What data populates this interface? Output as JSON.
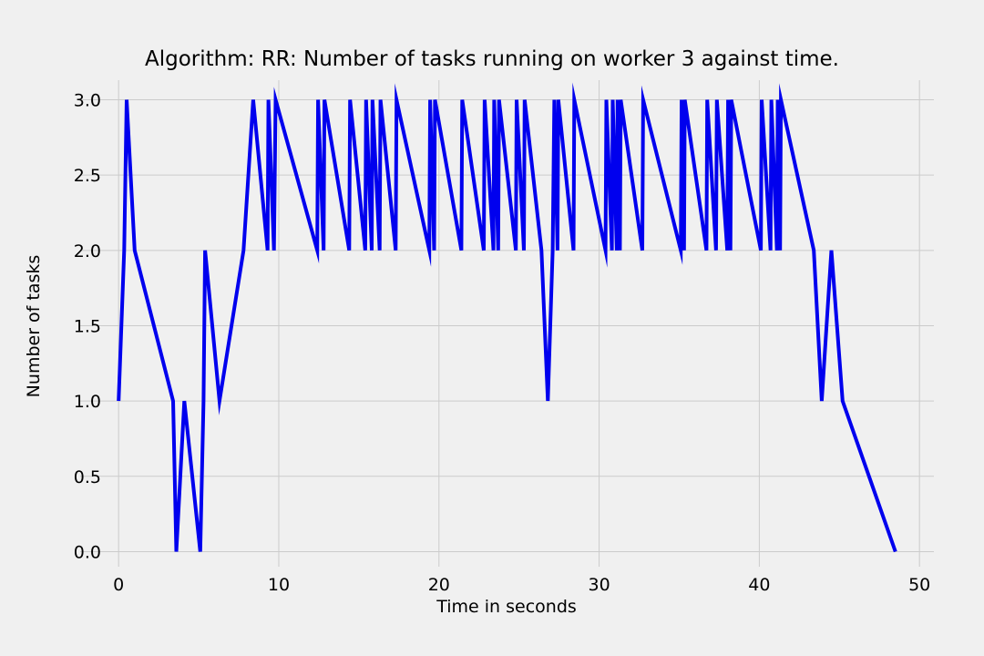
{
  "chart_data": {
    "type": "line",
    "title": "Algorithm: RR: Number of tasks running on worker 3 against time.",
    "xlabel": "Time in seconds",
    "ylabel": "Number of tasks",
    "xlim": [
      -2.4,
      50.9
    ],
    "ylim": [
      -0.1,
      3.13
    ],
    "xticks": [
      0,
      10,
      20,
      30,
      40,
      50
    ],
    "yticks": [
      0.0,
      0.5,
      1.0,
      1.5,
      2.0,
      2.5,
      3.0
    ],
    "ytick_labels": [
      "0.0",
      "0.5",
      "1.0",
      "1.5",
      "2.0",
      "2.5",
      "3.0"
    ],
    "grid": true,
    "series": [
      {
        "color": "#0000ee",
        "x": [
          0.0,
          0.35,
          0.5,
          1.0,
          3.4,
          3.6,
          4.1,
          5.1,
          5.3,
          5.4,
          6.3,
          7.8,
          8.4,
          9.3,
          9.35,
          9.7,
          9.8,
          12.4,
          12.45,
          12.8,
          12.85,
          14.4,
          14.45,
          15.4,
          15.45,
          15.8,
          15.85,
          16.3,
          16.35,
          17.3,
          17.35,
          19.4,
          19.45,
          19.7,
          19.75,
          21.4,
          21.45,
          22.8,
          22.85,
          23.4,
          23.45,
          23.7,
          23.75,
          24.8,
          24.85,
          25.3,
          25.35,
          26.4,
          26.8,
          27.1,
          27.2,
          27.4,
          27.45,
          28.4,
          28.45,
          30.4,
          30.45,
          30.8,
          30.85,
          31.1,
          31.15,
          31.3,
          31.35,
          32.7,
          32.75,
          35.1,
          35.15,
          35.3,
          35.35,
          36.7,
          36.75,
          37.3,
          37.35,
          38.0,
          38.05,
          38.2,
          38.25,
          40.1,
          40.15,
          40.7,
          40.75,
          41.1,
          41.15,
          41.3,
          41.35,
          43.4,
          43.9,
          44.5,
          45.2,
          48.5
        ],
        "y": [
          1,
          2,
          3,
          2,
          1,
          0,
          1,
          0,
          1,
          2,
          1,
          2,
          3,
          2,
          3,
          2,
          3,
          2,
          3,
          2,
          3,
          2,
          3,
          2,
          3,
          2,
          3,
          2,
          3,
          2,
          3,
          2,
          3,
          2,
          3,
          2,
          3,
          2,
          3,
          2,
          3,
          2,
          3,
          2,
          3,
          2,
          3,
          2,
          1,
          2,
          3,
          2,
          3,
          2,
          3,
          2,
          3,
          2,
          3,
          2,
          3,
          2,
          3,
          2,
          3,
          2,
          3,
          2,
          3,
          2,
          3,
          2,
          3,
          2,
          3,
          2,
          3,
          2,
          3,
          2,
          3,
          2,
          3,
          2,
          3,
          2,
          1,
          2,
          1,
          0
        ]
      }
    ]
  }
}
